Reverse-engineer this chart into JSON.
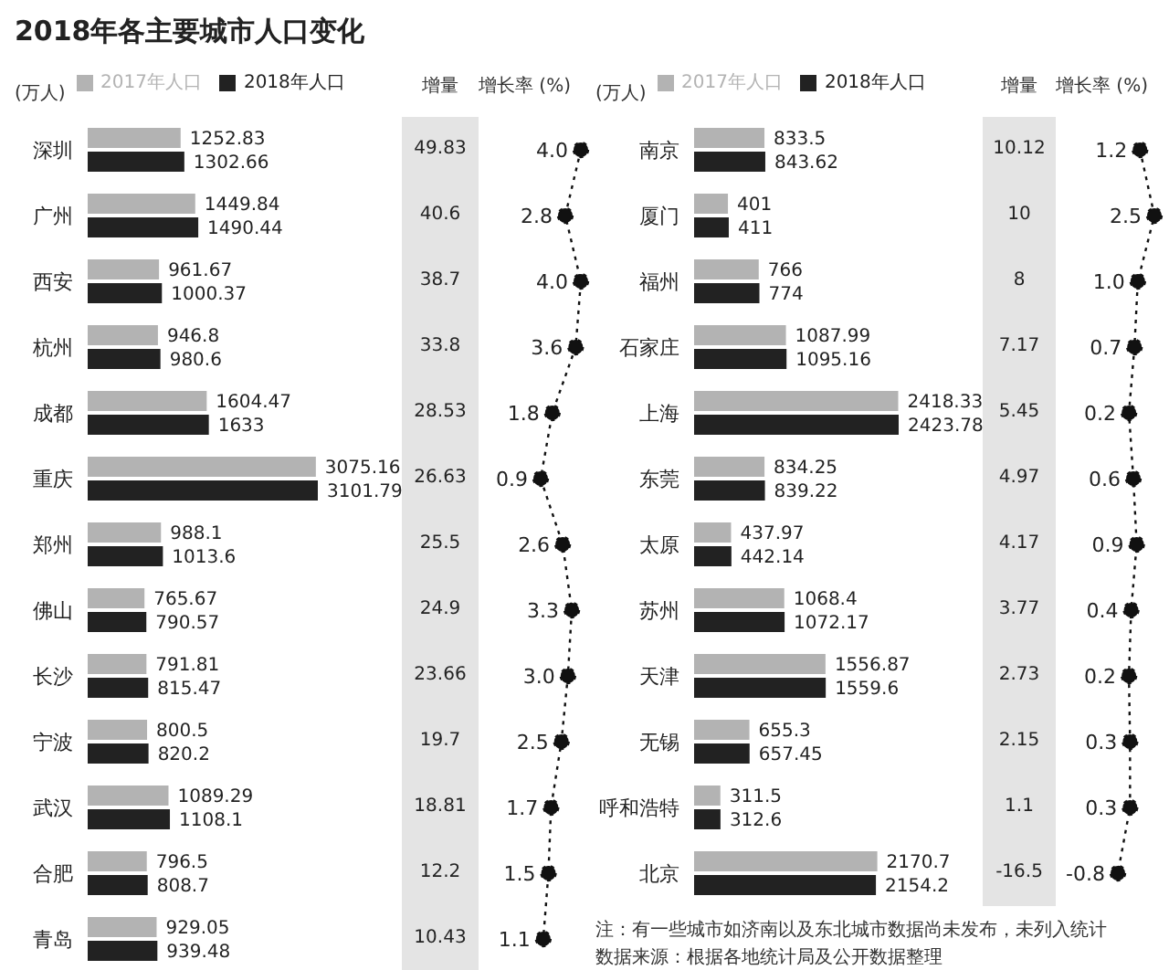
{
  "chart_data": [
    {
      "type": "bar",
      "title": "2018年各主要城市人口变化",
      "xlabel": "(万人)",
      "orientation": "horizontal",
      "legend": "top",
      "data_labels": true,
      "categories": [
        "深圳",
        "广州",
        "西安",
        "杭州",
        "成都",
        "重庆",
        "郑州",
        "佛山",
        "长沙",
        "宁波",
        "武汉",
        "合肥",
        "青岛"
      ],
      "series": [
        {
          "name": "2017年人口",
          "color": "#b3b3b3",
          "values": [
            1252.83,
            1449.84,
            961.67,
            946.8,
            1604.47,
            3075.16,
            988.1,
            765.67,
            791.81,
            800.5,
            1089.29,
            796.5,
            929.05
          ]
        },
        {
          "name": "2018年人口",
          "color": "#222222",
          "values": [
            1302.66,
            1490.44,
            1000.37,
            980.6,
            1633,
            3101.79,
            1013.6,
            790.57,
            815.47,
            820.2,
            1108.1,
            808.7,
            939.48
          ]
        }
      ]
    },
    {
      "type": "other",
      "title": "增量",
      "data_labels": true,
      "categories": [
        null,
        null,
        null,
        null,
        null,
        null,
        null,
        null,
        null,
        null,
        null,
        null,
        null
      ],
      "values": [
        49.83,
        40.6,
        38.7,
        33.8,
        28.53,
        26.63,
        25.5,
        24.9,
        23.66,
        19.7,
        18.81,
        12.2,
        10.43
      ]
    },
    {
      "type": "line",
      "title": "增长率 (%)",
      "orientation": "horizontal",
      "marker": "circle",
      "line_style": "dotted",
      "categories": [
        null,
        null,
        null,
        null,
        null,
        null,
        null,
        null,
        null,
        null,
        null,
        null,
        null
      ],
      "series": [
        {
          "color": "#111111",
          "values": [
            4.0,
            2.8,
            4.0,
            3.6,
            1.8,
            0.9,
            2.6,
            3.3,
            3.0,
            2.5,
            1.7,
            1.5,
            1.1
          ],
          "value_labels": [
            "4.0",
            "2.8",
            "4.0",
            "3.6",
            "1.8",
            "0.9",
            "2.6",
            "3.3",
            "3.0",
            "2.5",
            "1.7",
            "1.5",
            "1.1"
          ]
        }
      ]
    },
    {
      "type": "bar",
      "xlabel": "(万人)",
      "orientation": "horizontal",
      "legend": "top",
      "data_labels": true,
      "categories": [
        "南京",
        "厦门",
        "福州",
        "石家庄",
        "上海",
        "东莞",
        "太原",
        "苏州",
        "天津",
        "无锡",
        "呼和浩特",
        "北京"
      ],
      "series": [
        {
          "name": "2017年人口",
          "color": "#b3b3b3",
          "values": [
            833.5,
            401,
            766,
            1087.99,
            2418.33,
            834.25,
            437.97,
            1068.4,
            1556.87,
            655.3,
            311.5,
            2170.7
          ]
        },
        {
          "name": "2018年人口",
          "color": "#222222",
          "values": [
            843.62,
            411,
            774,
            1095.16,
            2423.78,
            839.22,
            442.14,
            1072.17,
            1559.6,
            657.45,
            312.6,
            2154.2
          ]
        }
      ],
      "annotations": [
        "注：有一些城市如济南以及东北城市数据尚未发布，未列入统计",
        "数据来源：根据各地统计局及公开数据整理"
      ]
    },
    {
      "type": "other",
      "title": "增量",
      "data_labels": true,
      "categories": [
        null,
        null,
        null,
        null,
        null,
        null,
        null,
        null,
        null,
        null,
        null,
        null
      ],
      "values": [
        10.12,
        10,
        8,
        7.17,
        5.45,
        4.97,
        4.17,
        3.77,
        2.73,
        2.15,
        1.1,
        -16.5
      ]
    },
    {
      "type": "line",
      "title": "增长率 (%)",
      "orientation": "horizontal",
      "marker": "circle",
      "line_style": "dotted",
      "categories": [
        null,
        null,
        null,
        null,
        null,
        null,
        null,
        null,
        null,
        null,
        null,
        null
      ],
      "series": [
        {
          "color": "#111111",
          "values": [
            1.2,
            2.5,
            1.0,
            0.7,
            0.2,
            0.6,
            0.9,
            0.4,
            0.2,
            0.3,
            0.3,
            -0.8
          ],
          "value_labels": [
            "1.2",
            "2.5",
            "1.0",
            "0.7",
            "0.2",
            "0.6",
            "0.9",
            "0.4",
            "0.2",
            "0.3",
            "0.3",
            "-0.8"
          ]
        }
      ]
    }
  ]
}
